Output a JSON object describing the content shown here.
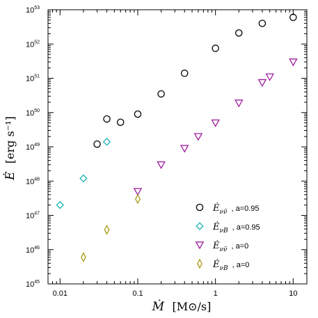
{
  "chart_data": {
    "type": "scatter",
    "title": "",
    "xlabel": {
      "symbol": "Ṁ",
      "unit": "[M⊙/s]"
    },
    "ylabel": {
      "symbol": "Ė",
      "unit": "[erg s⁻¹]"
    },
    "xscale": "log",
    "yscale": "log",
    "xlim": [
      0.007,
      15
    ],
    "ylim": [
      1e+45,
      1e+53
    ],
    "x_ticks": [
      {
        "value": 0.01,
        "label": "0.01"
      },
      {
        "value": 0.1,
        "label": "0.1"
      },
      {
        "value": 1,
        "label": "1"
      },
      {
        "value": 10,
        "label": "10"
      }
    ],
    "y_ticks": [
      {
        "value": 1e+45,
        "base": "10",
        "exp": "45"
      },
      {
        "value": 1e+46,
        "base": "10",
        "exp": "46"
      },
      {
        "value": 1e+47,
        "base": "10",
        "exp": "47"
      },
      {
        "value": 1e+48,
        "base": "10",
        "exp": "48"
      },
      {
        "value": 1e+49,
        "base": "10",
        "exp": "49"
      },
      {
        "value": 1e+50,
        "base": "10",
        "exp": "50"
      },
      {
        "value": 1e+51,
        "base": "10",
        "exp": "51"
      },
      {
        "value": 1e+52,
        "base": "10",
        "exp": "52"
      },
      {
        "value": 1e+53,
        "base": "10",
        "exp": "53"
      }
    ],
    "grid": false,
    "legend_position": "bottom-right",
    "series": [
      {
        "name": "Ė_{νν̄}, a=0.95",
        "symbol": "Ė",
        "sub": "νν̄",
        "tag": ", a=0.95",
        "marker": "circle",
        "color": "#000000",
        "points": [
          [
            0.03,
            1.2e+49
          ],
          [
            0.04,
            6.5e+49
          ],
          [
            0.06,
            5.2e+49
          ],
          [
            0.1,
            9e+49
          ],
          [
            0.2,
            3.5e+50
          ],
          [
            0.4,
            1.4e+51
          ],
          [
            1,
            7.5e+51
          ],
          [
            2,
            2.1e+52
          ],
          [
            4,
            4e+52
          ],
          [
            10,
            6e+52
          ]
        ]
      },
      {
        "name": "Ė_{νB}, a=0.95",
        "symbol": "Ė",
        "sub": "νB",
        "tag": ", a=0.95",
        "marker": "diamond",
        "color": "#1ab2b2",
        "points": [
          [
            0.01,
            2e+47
          ],
          [
            0.02,
            1.2e+48
          ],
          [
            0.04,
            1.4e+49
          ]
        ]
      },
      {
        "name": "Ė_{νν̄}, a=0",
        "symbol": "Ė",
        "sub": "νν̄",
        "tag": ", a=0",
        "marker": "triangle-down",
        "color": "#a01fa0",
        "points": [
          [
            0.1,
            5e+47
          ],
          [
            0.2,
            3e+48
          ],
          [
            0.4,
            9e+48
          ],
          [
            0.6,
            2e+49
          ],
          [
            1,
            5e+49
          ],
          [
            2,
            1.9e+50
          ],
          [
            4,
            7.5e+50
          ],
          [
            5,
            1.1e+51
          ],
          [
            10,
            3e+51
          ]
        ]
      },
      {
        "name": "Ė_{νB}, a=0",
        "symbol": "Ė",
        "sub": "νB",
        "tag": ", a=0",
        "marker": "diamond",
        "color": "#a89a10",
        "points": [
          [
            0.02,
            6e+45
          ],
          [
            0.04,
            3.8e+46
          ],
          [
            0.1,
            3e+47
          ]
        ]
      }
    ]
  }
}
